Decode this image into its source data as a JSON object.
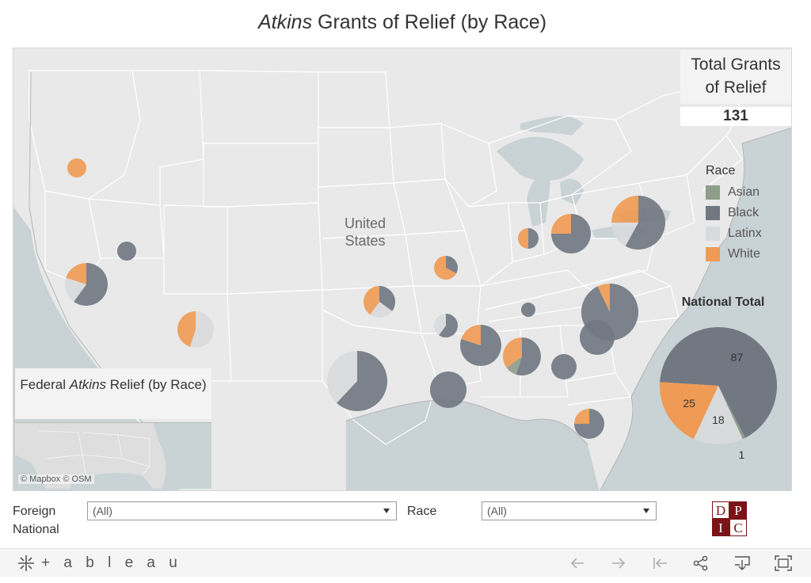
{
  "title": {
    "italic": "Atkins",
    "rest": " Grants of Relief (by Race)"
  },
  "map": {
    "country_label": "United States",
    "total_box": {
      "line1": "Total Grants",
      "line2": "of Relief",
      "value": "131"
    },
    "legend": {
      "title": "Race",
      "items": [
        {
          "label": "Asian",
          "color": "#8f9e8a"
        },
        {
          "label": "Black",
          "color": "#727882"
        },
        {
          "label": "Latinx",
          "color": "#d8dadc"
        },
        {
          "label": "White",
          "color": "#ef9b55"
        }
      ]
    },
    "national_total": {
      "title": "National Total",
      "slices": [
        {
          "race": "Black",
          "value": 87,
          "color": "#727882"
        },
        {
          "race": "Asian",
          "value": 1,
          "color": "#8f9e8a"
        },
        {
          "race": "Latinx",
          "value": 18,
          "color": "#d8dadc"
        },
        {
          "race": "White",
          "value": 25,
          "color": "#ef9b55"
        }
      ]
    },
    "inset": {
      "title_pre": "Federal ",
      "title_italic": "Atkins",
      "title_post": " Relief (by Race)"
    },
    "attribution": "© Mapbox  © OSM"
  },
  "filters": {
    "foreign_national": {
      "label": "Foreign National",
      "value": "(All)"
    },
    "race": {
      "label": "Race",
      "value": "(All)"
    }
  },
  "logo": {
    "letters": [
      "D",
      "P",
      "I",
      "C"
    ],
    "color": "#7a1418"
  },
  "toolbar": {
    "brand": "+ a b l e a u",
    "buttons": [
      "undo-icon",
      "redo-icon",
      "revert-icon",
      "share-icon",
      "download-icon",
      "fullscreen-icon"
    ]
  }
}
